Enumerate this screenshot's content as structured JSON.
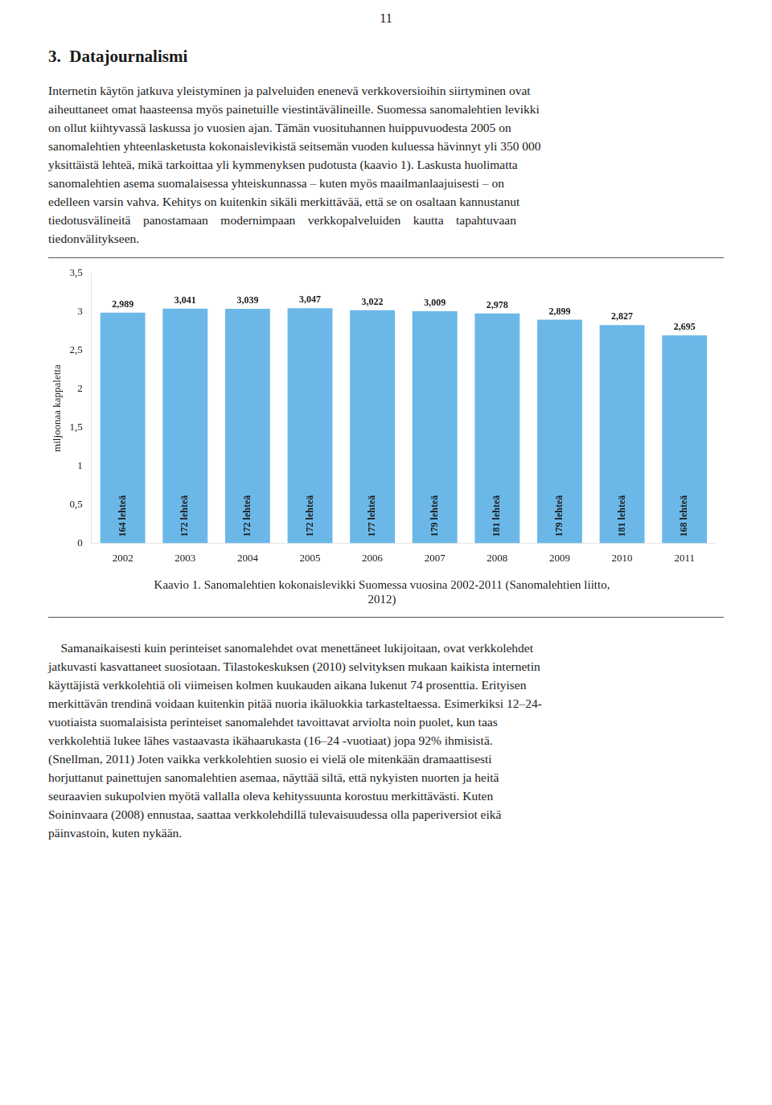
{
  "page_number": "11",
  "heading": "3.  Datajournalismi",
  "intro_lines": [
    "Internetin käytön jatkuva yleistyminen ja palveluiden enenevä verkkoversioihin siirtyminen ovat",
    "aiheuttaneet omat haasteensa myös painetuille viestintävälineille. Suomessa sanomalehtien levikki",
    "on ollut kiihtyvassä laskussa jo vuosien ajan. Tämän vuosituhannen huippuvuodesta 2005 on",
    "sanomalehtien yhteenlasketusta kokonaislevikistä seitsemän vuoden kuluessa hävinnyt yli 350 000",
    "yksittäistä lehteä, mikä tarkoittaa yli kymmenyksen pudotusta (kaavio 1). Laskusta huolimatta",
    "sanomalehtien asema suomalaisessa yhteiskunnassa – kuten myös maailmanlaajuisesti – on",
    "edelleen varsin vahva. Kehitys on kuitenkin sikäli merkittävää, että se on osaltaan kannustanut",
    "tiedotusvälineitä    panostamaan    modernimpaan    verkkopalveluiden    kautta    tapahtuvaan",
    "tiedonvälitykseen."
  ],
  "chart_data": {
    "type": "bar",
    "title": [
      "Kaavio 1. Sanomalehtien kokonaislevikki Suomessa vuosina 2002-2011 (Sanomalehtien liitto,",
      "2012)"
    ],
    "categories": [
      "2002",
      "2003",
      "2004",
      "2005",
      "2006",
      "2007",
      "2008",
      "2009",
      "2010",
      "2011"
    ],
    "values": [
      2.989,
      3.041,
      3.039,
      3.047,
      3.022,
      3.009,
      2.978,
      2.899,
      2.827,
      2.695
    ],
    "value_labels": [
      "2,989",
      "3,041",
      "3,039",
      "3,047",
      "3,022",
      "3,009",
      "2,978",
      "2,899",
      "2,827",
      "2,695"
    ],
    "bar_labels": [
      "164 lehteä",
      "172 lehteä",
      "172 lehteä",
      "172 lehteä",
      "177 lehteä",
      "179 lehteä",
      "181 lehteä",
      "179 lehteä",
      "181 lehteä",
      "168 lehteä"
    ],
    "data_labels": true,
    "color": "#6BB8E8",
    "ylabel": "miljoonaa kappaletta",
    "ylim": [
      0,
      3.5
    ],
    "yticks": [
      0,
      {
        "value": 0.5,
        "label": "0,5"
      },
      1,
      {
        "value": 1.5,
        "label": "1,5"
      },
      2,
      {
        "value": 2.5,
        "label": "2,5"
      },
      3,
      {
        "value": 3.5,
        "label": "3,5"
      }
    ],
    "grid": false
  },
  "body_lines": [
    "    Samanaikaisesti kuin perinteiset sanomalehdet ovat menettäneet lukijoitaan, ovat verkkolehdet",
    "jatkuvasti kasvattaneet suosiotaan. Tilastokeskuksen (2010) selvityksen mukaan kaikista internetin",
    "käyttäjistä verkkolehtiä oli viimeisen kolmen kuukauden aikana lukenut 74 prosenttia. Erityisen",
    "merkittävän trendinä voidaan kuitenkin pitää nuoria ikäluokkia tarkasteltaessa. Esimerkiksi 12–24-",
    "vuotiaista suomalaisista perinteiset sanomalehdet tavoittavat arviolta noin puolet, kun taas",
    "verkkolehtiä lukee lähes vastaavasta ikähaarukasta (16–24 -vuotiaat) jopa 92% ihmisistä.",
    "(Snellman, 2011) Joten vaikka verkkolehtien suosio ei vielä ole mitenkään dramaattisesti",
    "horjuttanut painettujen sanomalehtien asemaa, näyttää siltä, että nykyisten nuorten ja heitä",
    "seuraavien sukupolvien myötä vallalla oleva kehityssuunta korostuu merkittävästi. Kuten",
    "Soininvaara (2008) ennustaa, saattaa verkkolehdillä tulevaisuudessa olla paperiversiot eikä",
    "päinvastoin, kuten nykään."
  ]
}
